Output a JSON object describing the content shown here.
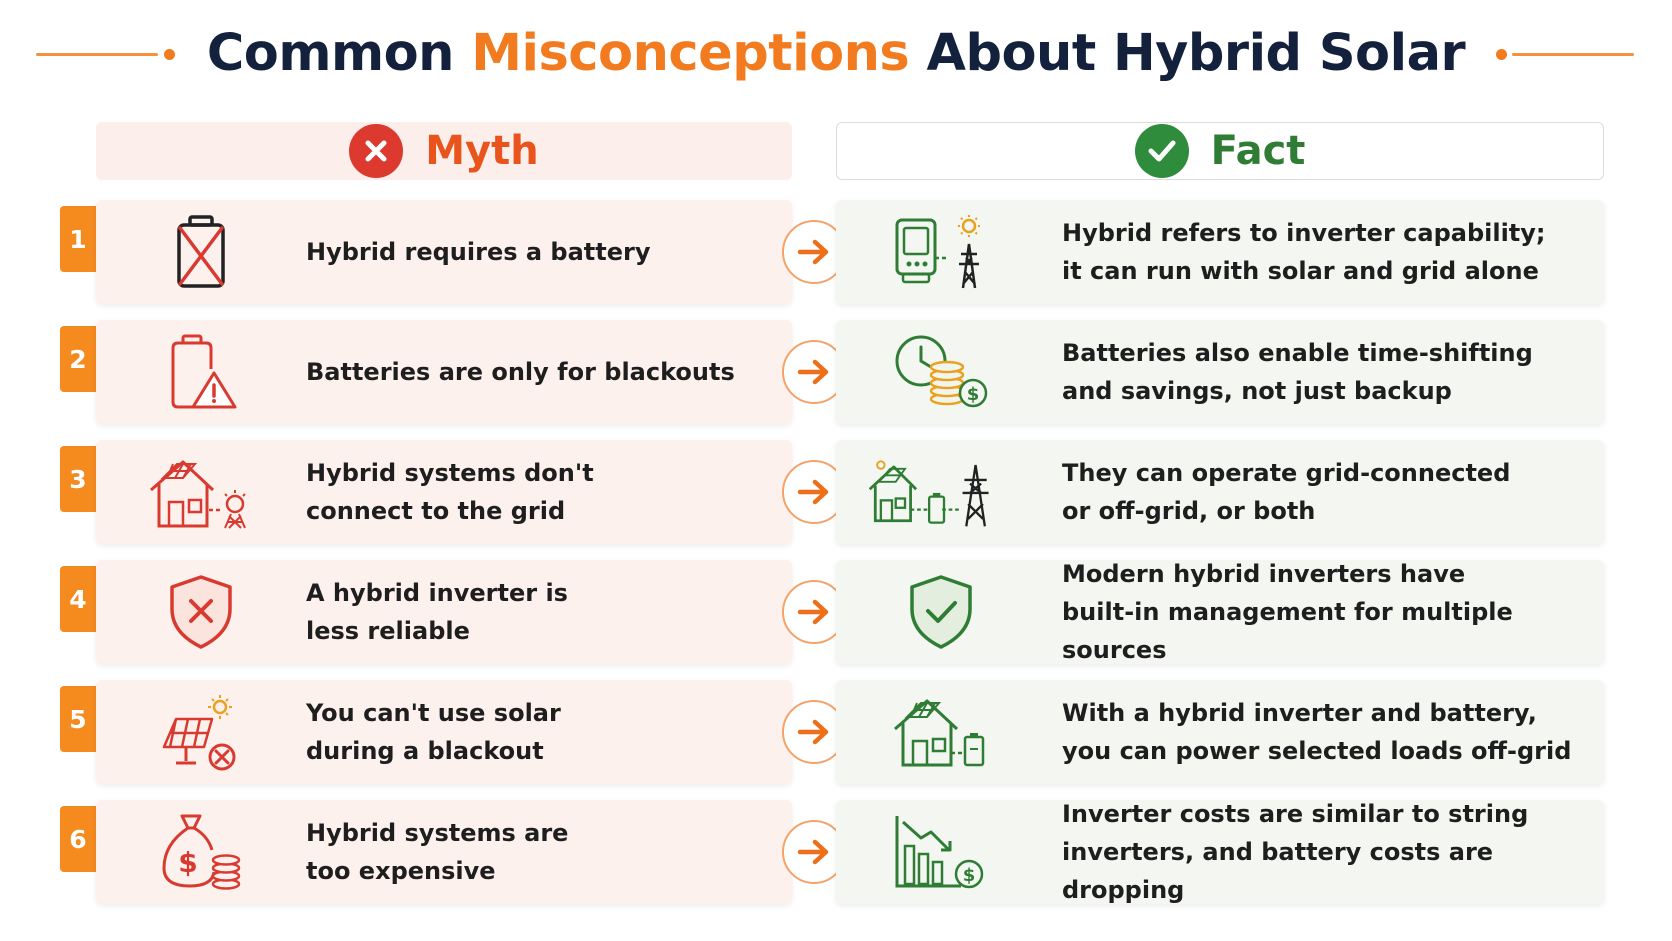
{
  "title": {
    "part1": "Common ",
    "accent": "Misconceptions",
    "part2": " About Hybrid Solar"
  },
  "colors": {
    "accent_orange": "#f27b20",
    "myth_red": "#dc3a2f",
    "fact_green": "#2f8c3c",
    "title_navy": "#14213d"
  },
  "headers": {
    "myth": {
      "label": "Myth",
      "icon": "x-circle-icon"
    },
    "fact": {
      "label": "Fact",
      "icon": "check-circle-icon"
    }
  },
  "rows": [
    {
      "number": "1",
      "myth_text": "Hybrid requires a battery",
      "myth_icon": "crossed-battery-icon",
      "fact_text": "Hybrid refers to inverter capability;\nit can run with solar and grid alone",
      "fact_icon": "inverter-sun-pylon-icon"
    },
    {
      "number": "2",
      "myth_text": "Batteries are only for blackouts",
      "myth_icon": "battery-warning-icon",
      "fact_text": "Batteries also enable time-shifting\nand savings, not just backup",
      "fact_icon": "clock-coins-icon"
    },
    {
      "number": "3",
      "myth_text": "Hybrid systems don't\nconnect to the grid",
      "myth_icon": "house-solar-no-grid-icon",
      "fact_text": "They can operate grid-connected\nor off-grid, or both",
      "fact_icon": "house-battery-pylon-icon"
    },
    {
      "number": "4",
      "myth_text": "A hybrid inverter is\nless reliable",
      "myth_icon": "shield-x-icon",
      "fact_text": "Modern hybrid inverters have\nbuilt-in management for multiple sources",
      "fact_icon": "shield-check-icon"
    },
    {
      "number": "5",
      "myth_text": "You can't use solar\nduring a blackout",
      "myth_icon": "solar-panel-x-icon",
      "fact_text": "With a hybrid inverter and battery,\nyou can power selected loads off-grid",
      "fact_icon": "house-solar-battery-icon"
    },
    {
      "number": "6",
      "myth_text": "Hybrid systems are\ntoo expensive",
      "myth_icon": "money-bag-coins-icon",
      "fact_text": "Inverter costs are similar to string\ninverters, and battery costs are dropping",
      "fact_icon": "falling-cost-chart-icon"
    }
  ]
}
